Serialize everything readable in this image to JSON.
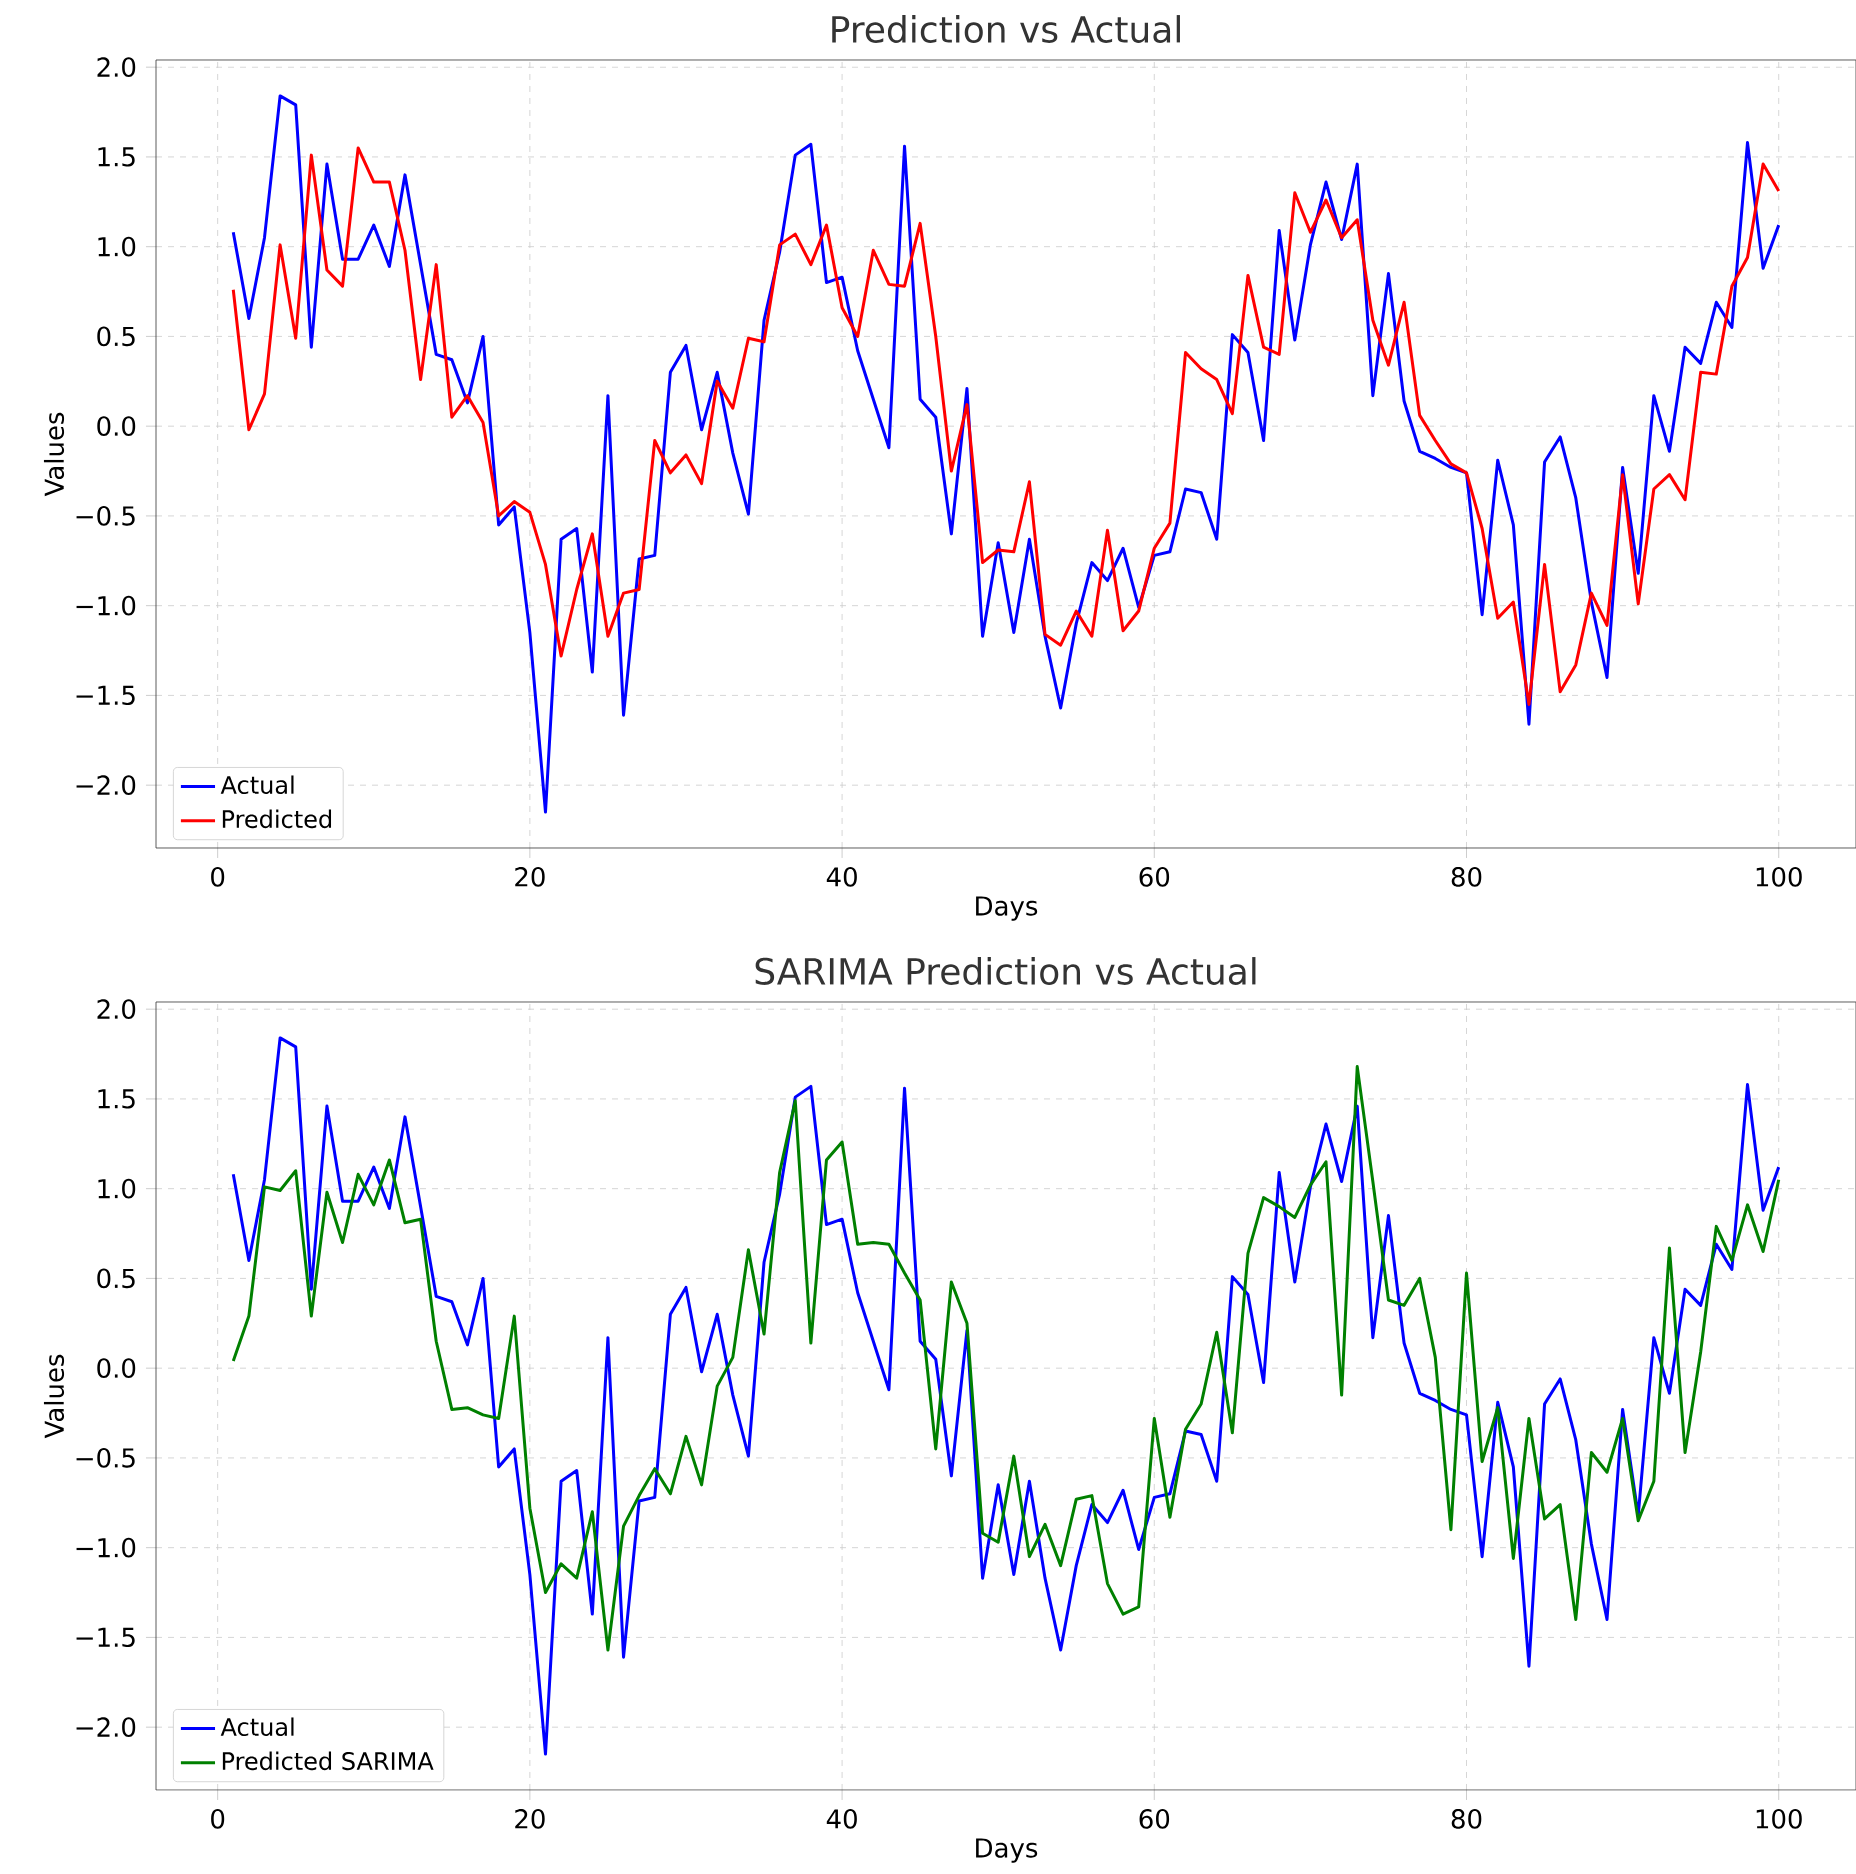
{
  "chart_data": [
    {
      "type": "line",
      "title": "Prediction vs Actual",
      "xlabel": "Days",
      "ylabel": "Values",
      "grid": true,
      "legend": "bottom left",
      "line_style": "solid",
      "marker": "none",
      "xlim": [
        -3.95,
        104.95
      ],
      "ylim": [
        -2.35,
        2.04
      ],
      "xticks": [
        0,
        20,
        40,
        60,
        80,
        100
      ],
      "yticks": [
        {
          "value": -2,
          "label": "−2.0"
        },
        {
          "value": -1.5,
          "label": "−1.5"
        },
        {
          "value": -1,
          "label": "−1.0"
        },
        {
          "value": -0.5,
          "label": "−0.5"
        },
        {
          "value": 0,
          "label": "0.0"
        },
        {
          "value": 0.5,
          "label": "0.5"
        },
        {
          "value": 1,
          "label": "1.0"
        },
        {
          "value": 1.5,
          "label": "1.5"
        },
        {
          "value": 2,
          "label": "2.0"
        }
      ],
      "x": [
        1,
        2,
        3,
        4,
        5,
        6,
        7,
        8,
        9,
        10,
        11,
        12,
        13,
        14,
        15,
        16,
        17,
        18,
        19,
        20,
        21,
        22,
        23,
        24,
        25,
        26,
        27,
        28,
        29,
        30,
        31,
        32,
        33,
        34,
        35,
        36,
        37,
        38,
        39,
        40,
        41,
        42,
        43,
        44,
        45,
        46,
        47,
        48,
        49,
        50,
        51,
        52,
        53,
        54,
        55,
        56,
        57,
        58,
        59,
        60,
        61,
        62,
        63,
        64,
        65,
        66,
        67,
        68,
        69,
        70,
        71,
        72,
        73,
        74,
        75,
        76,
        77,
        78,
        79,
        80,
        81,
        82,
        83,
        84,
        85,
        86,
        87,
        88,
        89,
        90,
        91,
        92,
        93,
        94,
        95,
        96,
        97,
        98,
        99,
        100
      ],
      "series": [
        {
          "name": "Actual",
          "color": "#0000ff",
          "values": [
            1.08,
            0.6,
            1.05,
            1.84,
            1.79,
            0.44,
            1.46,
            0.93,
            0.93,
            1.12,
            0.89,
            1.4,
            0.9,
            0.4,
            0.37,
            0.13,
            0.5,
            -0.55,
            -0.45,
            -1.15,
            -2.15,
            -0.63,
            -0.57,
            -1.37,
            0.17,
            -1.61,
            -0.74,
            -0.72,
            0.3,
            0.45,
            -0.02,
            0.3,
            -0.15,
            -0.49,
            0.59,
            0.97,
            1.51,
            1.57,
            0.8,
            0.83,
            0.42,
            0.15,
            -0.12,
            1.56,
            0.15,
            0.05,
            -0.6,
            0.21,
            -1.17,
            -0.65,
            -1.15,
            -0.63,
            -1.17,
            -1.57,
            -1.1,
            -0.76,
            -0.86,
            -0.68,
            -1.01,
            -0.72,
            -0.7,
            -0.35,
            -0.37,
            -0.63,
            0.51,
            0.41,
            -0.08,
            1.09,
            0.48,
            1.01,
            1.36,
            1.04,
            1.46,
            0.17,
            0.85,
            0.14,
            -0.14,
            -0.18,
            -0.23,
            -0.26,
            -1.05,
            -0.19,
            -0.55,
            -1.66,
            -0.2,
            -0.06,
            -0.4,
            -0.98,
            -1.4,
            -0.23,
            -0.82,
            0.17,
            -0.14,
            0.44,
            0.35,
            0.69,
            0.55,
            1.58,
            0.88,
            1.12
          ]
        },
        {
          "name": "Predicted",
          "color": "#ff0000",
          "values": [
            0.76,
            -0.02,
            0.18,
            1.01,
            0.49,
            1.51,
            0.87,
            0.78,
            1.55,
            1.36,
            1.36,
            0.98,
            0.26,
            0.9,
            0.05,
            0.17,
            0.02,
            -0.5,
            -0.42,
            -0.48,
            -0.77,
            -1.28,
            -0.91,
            -0.6,
            -1.17,
            -0.93,
            -0.91,
            -0.08,
            -0.26,
            -0.16,
            -0.32,
            0.25,
            0.1,
            0.49,
            0.47,
            1.01,
            1.07,
            0.9,
            1.12,
            0.66,
            0.5,
            0.98,
            0.79,
            0.78,
            1.13,
            0.5,
            -0.25,
            0.12,
            -0.76,
            -0.69,
            -0.7,
            -0.31,
            -1.16,
            -1.22,
            -1.03,
            -1.17,
            -0.58,
            -1.14,
            -1.03,
            -0.68,
            -0.54,
            0.41,
            0.32,
            0.26,
            0.07,
            0.84,
            0.44,
            0.4,
            1.3,
            1.08,
            1.26,
            1.05,
            1.15,
            0.59,
            0.34,
            0.69,
            0.06,
            -0.08,
            -0.21,
            -0.26,
            -0.57,
            -1.07,
            -0.98,
            -1.55,
            -0.77,
            -1.48,
            -1.33,
            -0.93,
            -1.11,
            -0.27,
            -0.99,
            -0.35,
            -0.27,
            -0.41,
            0.3,
            0.29,
            0.78,
            0.94,
            1.46,
            1.31
          ]
        }
      ]
    },
    {
      "type": "line",
      "title": "SARIMA Prediction vs Actual",
      "xlabel": "Days",
      "ylabel": "Values",
      "grid": true,
      "legend": "bottom left",
      "line_style": "solid",
      "marker": "none",
      "xlim": [
        -3.95,
        104.95
      ],
      "ylim": [
        -2.35,
        2.04
      ],
      "xticks": [
        0,
        20,
        40,
        60,
        80,
        100
      ],
      "yticks": [
        {
          "value": -2,
          "label": "−2.0"
        },
        {
          "value": -1.5,
          "label": "−1.5"
        },
        {
          "value": -1,
          "label": "−1.0"
        },
        {
          "value": -0.5,
          "label": "−0.5"
        },
        {
          "value": 0,
          "label": "0.0"
        },
        {
          "value": 0.5,
          "label": "0.5"
        },
        {
          "value": 1,
          "label": "1.0"
        },
        {
          "value": 1.5,
          "label": "1.5"
        },
        {
          "value": 2,
          "label": "2.0"
        }
      ],
      "x": [
        1,
        2,
        3,
        4,
        5,
        6,
        7,
        8,
        9,
        10,
        11,
        12,
        13,
        14,
        15,
        16,
        17,
        18,
        19,
        20,
        21,
        22,
        23,
        24,
        25,
        26,
        27,
        28,
        29,
        30,
        31,
        32,
        33,
        34,
        35,
        36,
        37,
        38,
        39,
        40,
        41,
        42,
        43,
        44,
        45,
        46,
        47,
        48,
        49,
        50,
        51,
        52,
        53,
        54,
        55,
        56,
        57,
        58,
        59,
        60,
        61,
        62,
        63,
        64,
        65,
        66,
        67,
        68,
        69,
        70,
        71,
        72,
        73,
        74,
        75,
        76,
        77,
        78,
        79,
        80,
        81,
        82,
        83,
        84,
        85,
        86,
        87,
        88,
        89,
        90,
        91,
        92,
        93,
        94,
        95,
        96,
        97,
        98,
        99,
        100
      ],
      "series": [
        {
          "name": "Actual",
          "color": "#0000ff",
          "values": [
            1.08,
            0.6,
            1.05,
            1.84,
            1.79,
            0.44,
            1.46,
            0.93,
            0.93,
            1.12,
            0.89,
            1.4,
            0.9,
            0.4,
            0.37,
            0.13,
            0.5,
            -0.55,
            -0.45,
            -1.15,
            -2.15,
            -0.63,
            -0.57,
            -1.37,
            0.17,
            -1.61,
            -0.74,
            -0.72,
            0.3,
            0.45,
            -0.02,
            0.3,
            -0.15,
            -0.49,
            0.59,
            0.97,
            1.51,
            1.57,
            0.8,
            0.83,
            0.42,
            0.15,
            -0.12,
            1.56,
            0.15,
            0.05,
            -0.6,
            0.21,
            -1.17,
            -0.65,
            -1.15,
            -0.63,
            -1.17,
            -1.57,
            -1.1,
            -0.76,
            -0.86,
            -0.68,
            -1.01,
            -0.72,
            -0.7,
            -0.35,
            -0.37,
            -0.63,
            0.51,
            0.41,
            -0.08,
            1.09,
            0.48,
            1.01,
            1.36,
            1.04,
            1.46,
            0.17,
            0.85,
            0.14,
            -0.14,
            -0.18,
            -0.23,
            -0.26,
            -1.05,
            -0.19,
            -0.55,
            -1.66,
            -0.2,
            -0.06,
            -0.4,
            -0.98,
            -1.4,
            -0.23,
            -0.82,
            0.17,
            -0.14,
            0.44,
            0.35,
            0.69,
            0.55,
            1.58,
            0.88,
            1.12
          ]
        },
        {
          "name": "Predicted SARIMA",
          "color": "#008000",
          "values": [
            0.04,
            0.29,
            1.01,
            0.99,
            1.1,
            0.29,
            0.98,
            0.7,
            1.08,
            0.91,
            1.16,
            0.81,
            0.83,
            0.15,
            -0.23,
            -0.22,
            -0.26,
            -0.28,
            0.29,
            -0.78,
            -1.25,
            -1.09,
            -1.17,
            -0.8,
            -1.57,
            -0.88,
            -0.71,
            -0.56,
            -0.7,
            -0.38,
            -0.65,
            -0.1,
            0.06,
            0.66,
            0.19,
            1.09,
            1.49,
            0.14,
            1.16,
            1.26,
            0.69,
            0.7,
            0.69,
            0.53,
            0.38,
            -0.45,
            0.48,
            0.25,
            -0.92,
            -0.97,
            -0.49,
            -1.05,
            -0.87,
            -1.1,
            -0.73,
            -0.71,
            -1.2,
            -1.37,
            -1.33,
            -0.28,
            -0.83,
            -0.34,
            -0.2,
            0.2,
            -0.36,
            0.64,
            0.95,
            0.9,
            0.84,
            1.02,
            1.15,
            -0.15,
            1.68,
            1.04,
            0.38,
            0.35,
            0.5,
            0.06,
            -0.9,
            0.53,
            -0.52,
            -0.22,
            -1.06,
            -0.28,
            -0.84,
            -0.76,
            -1.4,
            -0.47,
            -0.58,
            -0.28,
            -0.85,
            -0.63,
            0.67,
            -0.47,
            0.09,
            0.79,
            0.6,
            0.91,
            0.65,
            1.05
          ]
        }
      ]
    }
  ]
}
